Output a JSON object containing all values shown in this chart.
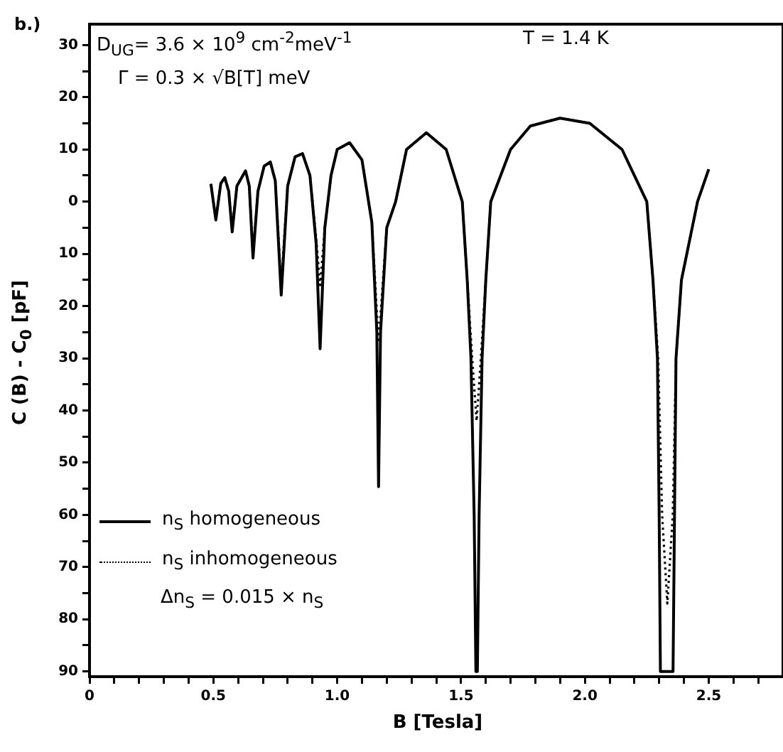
{
  "chart_data": {
    "type": "line",
    "title": "b.)",
    "xlabel": "B [Tesla]",
    "ylabel": "C (B) - C$_{0}$ [pF]",
    "annotations": [
      "D$_{UG}$= 3.6 × 10$^{9}$ cm$^{-2}$meV$^{-1}$",
      "Γ = 0.3 × √B[T] meV",
      "T = 1.4 K",
      "Δn$_{S}$ = 0.015 × n$_{S}$"
    ],
    "xlim": [
      0,
      2.8
    ],
    "ylim": [
      -91,
      34
    ],
    "xticks": [
      0,
      {
        "value": 0.1,
        "label": null
      },
      {
        "value": 0.2,
        "label": null
      },
      {
        "value": 0.3,
        "label": null
      },
      {
        "value": 0.4,
        "label": null
      },
      0.5,
      {
        "value": 0.6,
        "label": null
      },
      {
        "value": 0.7,
        "label": null
      },
      {
        "value": 0.8,
        "label": null
      },
      {
        "value": 0.9,
        "label": null
      },
      {
        "value": 1.0,
        "label": "1.0"
      },
      {
        "value": 1.1,
        "label": null
      },
      {
        "value": 1.2,
        "label": null
      },
      {
        "value": 1.3,
        "label": null
      },
      {
        "value": 1.4,
        "label": null
      },
      1.5,
      {
        "value": 1.6,
        "label": null
      },
      {
        "value": 1.7,
        "label": null
      },
      {
        "value": 1.8,
        "label": null
      },
      {
        "value": 1.9,
        "label": null
      },
      {
        "value": 2.0,
        "label": "2.0"
      },
      {
        "value": 2.1,
        "label": null
      },
      {
        "value": 2.2,
        "label": null
      },
      {
        "value": 2.3,
        "label": null
      },
      {
        "value": 2.4,
        "label": null
      },
      2.5,
      {
        "value": 2.6,
        "label": null
      },
      {
        "value": 2.7,
        "label": null
      }
    ],
    "yticks": [
      30,
      {
        "value": 25,
        "label": null
      },
      20,
      {
        "value": 15,
        "label": null
      },
      10,
      {
        "value": 5,
        "label": null
      },
      0,
      {
        "value": -5,
        "label": null
      },
      {
        "value": -10,
        "label": "10"
      },
      {
        "value": -15,
        "label": null
      },
      {
        "value": -20,
        "label": "20"
      },
      {
        "value": -25,
        "label": null
      },
      {
        "value": -30,
        "label": "30"
      },
      {
        "value": -35,
        "label": null
      },
      {
        "value": -40,
        "label": "40"
      },
      {
        "value": -45,
        "label": null
      },
      {
        "value": -50,
        "label": "50"
      },
      {
        "value": -55,
        "label": null
      },
      {
        "value": -60,
        "label": "60"
      },
      {
        "value": -65,
        "label": null
      },
      {
        "value": -70,
        "label": "70"
      },
      {
        "value": -75,
        "label": null
      },
      {
        "value": -80,
        "label": "80"
      },
      {
        "value": -85,
        "label": null
      },
      {
        "value": -90,
        "label": "90"
      }
    ],
    "grid": false,
    "legend": "bottom left",
    "marker": "none",
    "series": [
      {
        "name": "n$_{S}$ homogeneous",
        "color": "#000000",
        "line_style": "solid",
        "x": [
          0.49,
          0.51,
          0.53,
          0.546,
          0.562,
          0.576,
          0.595,
          0.63,
          0.645,
          0.66,
          0.68,
          0.705,
          0.73,
          0.75,
          0.774,
          0.8,
          0.83,
          0.86,
          0.89,
          0.915,
          0.931,
          0.95,
          0.975,
          1.0,
          1.05,
          1.1,
          1.14,
          1.16,
          1.167,
          1.175,
          1.2,
          1.236,
          1.28,
          1.36,
          1.44,
          1.505,
          1.525,
          1.54,
          1.553,
          1.56,
          1.566,
          1.573,
          1.585,
          1.6,
          1.62,
          1.7,
          1.78,
          1.9,
          2.02,
          2.15,
          2.25,
          2.275,
          2.293,
          2.3,
          2.305,
          2.356,
          2.362,
          2.368,
          2.39,
          2.455,
          2.5
        ],
        "values": [
          3.4,
          -3.5,
          3.5,
          4.6,
          2,
          -5.8,
          3,
          5.9,
          3,
          -10.8,
          2,
          6.8,
          7.6,
          4,
          -17.9,
          3,
          8.6,
          9.2,
          5,
          -8,
          -28.2,
          -5,
          5,
          10,
          11.3,
          8,
          -4,
          -25,
          -54.6,
          -25,
          -5,
          0,
          10,
          13.2,
          10,
          0,
          -15,
          -30,
          -60,
          -90,
          -90,
          -60,
          -30,
          -15,
          0,
          10,
          14.5,
          16,
          15,
          10,
          0,
          -15,
          -30,
          -60,
          -90,
          -90,
          -60,
          -30,
          -15,
          0,
          6.2
        ]
      },
      {
        "name": "n$_{S}$ inhomogeneous",
        "color": "#000000",
        "line_style": "dotted",
        "x": [
          0.49,
          0.51,
          0.53,
          0.546,
          0.562,
          0.576,
          0.595,
          0.63,
          0.645,
          0.66,
          0.68,
          0.705,
          0.73,
          0.75,
          0.774,
          0.8,
          0.83,
          0.86,
          0.89,
          0.915,
          0.931,
          0.95,
          0.975,
          1.0,
          1.05,
          1.1,
          1.14,
          1.167,
          1.2,
          1.236,
          1.28,
          1.36,
          1.44,
          1.505,
          1.525,
          1.545,
          1.563,
          1.58,
          1.6,
          1.62,
          1.7,
          1.78,
          1.9,
          2.02,
          2.15,
          2.25,
          2.275,
          2.296,
          2.312,
          2.333,
          2.355,
          2.368,
          2.39,
          2.455,
          2.5
        ],
        "values": [
          3.4,
          -3.3,
          3.5,
          4.6,
          2,
          -5.5,
          3,
          5.9,
          3,
          -10,
          2,
          6.8,
          7.6,
          4,
          -16,
          3,
          8.6,
          9.2,
          5,
          -7,
          -16,
          -5,
          5,
          10,
          11.3,
          8,
          -4,
          -27,
          -5,
          0,
          10,
          13.2,
          10,
          0,
          -15,
          -30,
          -42,
          -30,
          -15,
          0,
          10,
          14.5,
          16,
          15,
          10,
          0,
          -15,
          -30,
          -60,
          -77,
          -60,
          -30,
          -15,
          0,
          6.2
        ]
      }
    ]
  }
}
